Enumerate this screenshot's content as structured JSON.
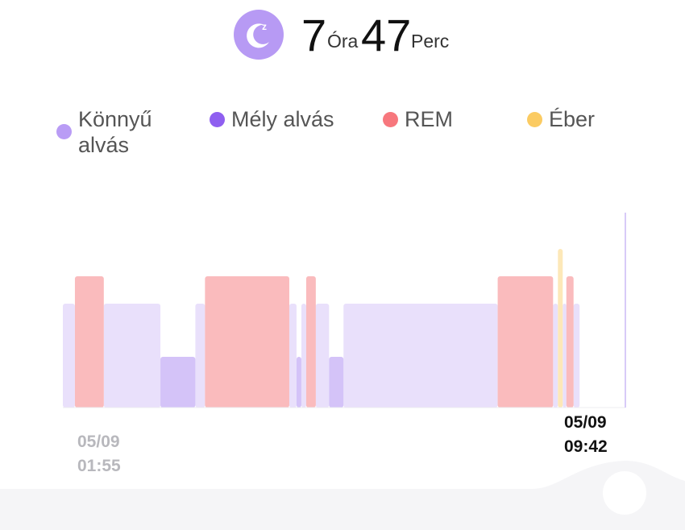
{
  "summary": {
    "hours": "7",
    "hours_unit": "Óra",
    "minutes": "47",
    "minutes_unit": "Perc",
    "icon": "moon-sleep-icon",
    "accent_color": "#b79af4"
  },
  "legend": [
    {
      "key": "light",
      "label_line1": "Könnyű",
      "label_line2": "alvás",
      "color": "#b99cf5"
    },
    {
      "key": "deep",
      "label_line1": "Mély alvás",
      "label_line2": "",
      "color": "#8f5ff0"
    },
    {
      "key": "rem",
      "label_line1": "REM",
      "label_line2": "",
      "color": "#f7777d"
    },
    {
      "key": "awake",
      "label_line1": "Éber",
      "label_line2": "",
      "color": "#fbcb62"
    }
  ],
  "axis": {
    "start_date": "05/09",
    "start_time": "01:55",
    "end_date": "05/09",
    "end_time": "09:42"
  },
  "chart_data": {
    "type": "bar",
    "x_unit": "minutes after 01:55",
    "x_range": [
      0,
      467
    ],
    "stage_colors": {
      "light": "#e9e0fb",
      "deep": "#d4c3f8",
      "rem": "#fabbbd",
      "awake": "#fde8b8"
    },
    "segments": [
      {
        "stage": "light",
        "start": 0,
        "end": 10
      },
      {
        "stage": "rem",
        "start": 10,
        "end": 34
      },
      {
        "stage": "light",
        "start": 34,
        "end": 81
      },
      {
        "stage": "deep",
        "start": 81,
        "end": 110
      },
      {
        "stage": "light",
        "start": 110,
        "end": 118
      },
      {
        "stage": "rem",
        "start": 118,
        "end": 188
      },
      {
        "stage": "light",
        "start": 188,
        "end": 194
      },
      {
        "stage": "deep",
        "start": 194,
        "end": 198
      },
      {
        "stage": "light",
        "start": 198,
        "end": 202
      },
      {
        "stage": "rem",
        "start": 202,
        "end": 210
      },
      {
        "stage": "light",
        "start": 210,
        "end": 221
      },
      {
        "stage": "deep",
        "start": 221,
        "end": 233
      },
      {
        "stage": "light",
        "start": 233,
        "end": 361
      },
      {
        "stage": "rem",
        "start": 361,
        "end": 407
      },
      {
        "stage": "light",
        "start": 407,
        "end": 411
      },
      {
        "stage": "awake",
        "start": 411,
        "end": 415
      },
      {
        "stage": "light",
        "start": 415,
        "end": 418
      },
      {
        "stage": "rem",
        "start": 418,
        "end": 424
      },
      {
        "stage": "light",
        "start": 424,
        "end": 429
      }
    ]
  }
}
